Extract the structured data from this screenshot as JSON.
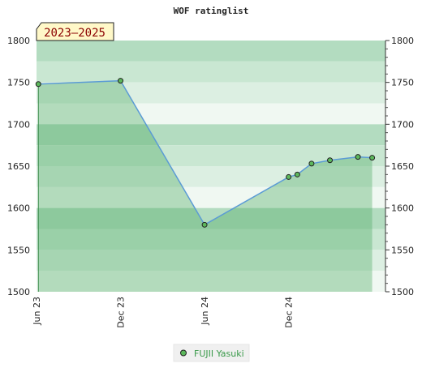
{
  "chart_data": {
    "type": "line",
    "title": "WOF ratinglist",
    "badge": "2023–2025",
    "xlabel": "",
    "ylabel": "",
    "ylim": [
      1500,
      1800
    ],
    "yticks": [
      1500,
      1550,
      1600,
      1650,
      1700,
      1750,
      1800
    ],
    "ytick_labels": [
      "1500",
      "1550",
      "1600",
      "1650",
      "1700",
      "1750",
      "1800"
    ],
    "xlim": [
      "2023-06-01",
      "2025-06-30"
    ],
    "xticks": [
      "2023-06-01",
      "2023-12-01",
      "2024-06-01",
      "2024-12-01"
    ],
    "xtick_labels": [
      "Jun 23",
      "Dec 23",
      "Jun 24",
      "Dec 24"
    ],
    "grid": true,
    "legend_position": "bottom-center",
    "series": [
      {
        "name": "FUJII Yasuki",
        "color": "#5b9bd5",
        "marker_color": "#5cb85c",
        "x": [
          "2023-06-05",
          "2023-12-01",
          "2024-06-01",
          "2024-12-01",
          "2024-12-20",
          "2025-01-20",
          "2025-03-01",
          "2025-05-01",
          "2025-06-01"
        ],
        "y": [
          1748,
          1752,
          1580,
          1637,
          1640,
          1653,
          1657,
          1661,
          1660
        ]
      }
    ]
  }
}
